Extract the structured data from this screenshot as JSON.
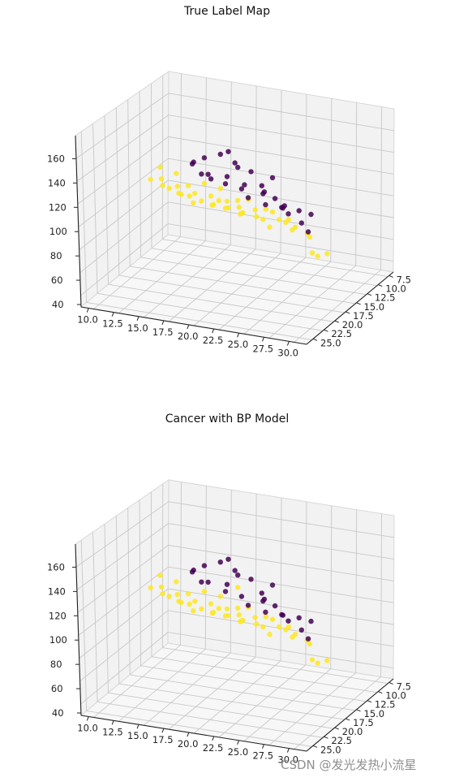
{
  "chart_data": [
    {
      "type": "scatter",
      "title": "True Label Map",
      "xticks": [
        "10.0",
        "12.5",
        "15.0",
        "17.5",
        "20.0",
        "22.5",
        "25.0",
        "27.5",
        "30.0"
      ],
      "yticks": [
        "7.5",
        "10.0",
        "12.5",
        "15.0",
        "17.5",
        "20.0",
        "22.5",
        "25.0"
      ],
      "zticks": [
        "40",
        "60",
        "80",
        "100",
        "120",
        "140",
        "160"
      ],
      "xlim": [
        10,
        31
      ],
      "ylim": [
        7,
        26
      ],
      "zlim": [
        40,
        180
      ],
      "colors": {
        "malignant": "#440154",
        "benign": "#fde725",
        "overlap": "#c8a53c"
      },
      "series": [
        {
          "label_class": "benign",
          "points": [
            [
              11.5,
              13,
              110
            ],
            [
              12,
              12,
              118
            ],
            [
              12.5,
              13,
              112
            ],
            [
              13,
              14,
              110
            ],
            [
              13.5,
              12,
              115
            ],
            [
              14,
              13,
              108
            ],
            [
              14,
              15,
              112
            ],
            [
              14.5,
              14,
              106
            ],
            [
              15,
              13,
              110
            ],
            [
              15.5,
              14,
              105
            ],
            [
              15.5,
              16,
              112
            ],
            [
              16,
              14,
              108
            ],
            [
              16.5,
              13,
              114
            ],
            [
              17,
              15,
              106
            ],
            [
              17,
              17,
              110
            ],
            [
              17.5,
              14,
              108
            ],
            [
              18,
              15,
              104
            ],
            [
              18,
              13,
              112
            ],
            [
              18.5,
              16,
              108
            ],
            [
              19,
              14,
              106
            ],
            [
              19,
              16,
              112
            ],
            [
              19.5,
              15,
              104
            ],
            [
              20,
              14,
              108
            ],
            [
              20,
              17,
              110
            ],
            [
              20.5,
              15,
              106
            ],
            [
              21,
              16,
              104
            ],
            [
              21,
              14,
              110
            ],
            [
              21.5,
              17,
              108
            ],
            [
              22,
              15,
              106
            ],
            [
              22,
              18,
              112
            ],
            [
              22.5,
              16,
              104
            ],
            [
              23,
              15,
              108
            ],
            [
              23.5,
              17,
              106
            ],
            [
              24,
              16,
              110
            ],
            [
              24.5,
              18,
              104
            ],
            [
              25,
              17,
              108
            ],
            [
              25.5,
              16,
              106
            ],
            [
              26,
              18,
              110
            ],
            [
              26.5,
              17,
              104
            ],
            [
              27,
              19,
              108
            ],
            [
              28,
              18,
              104
            ],
            [
              29,
              20,
              108
            ],
            [
              30,
              22,
              102
            ],
            [
              30.5,
              22,
              100
            ],
            [
              31,
              21,
              100
            ]
          ]
        },
        {
          "label_class": "malignant",
          "points": [
            [
              15,
              12,
              125
            ],
            [
              15.5,
              13,
              130
            ],
            [
              16.5,
              13,
              135
            ],
            [
              17,
              15,
              128
            ],
            [
              17.5,
              14,
              122
            ],
            [
              18,
              13,
              140
            ],
            [
              18,
              16,
              132
            ],
            [
              19,
              14,
              126
            ],
            [
              19.5,
              15,
              150
            ],
            [
              20,
              14,
              135
            ],
            [
              20,
              17,
              130
            ],
            [
              20.5,
              16,
              145
            ],
            [
              21,
              15,
              125
            ],
            [
              21.5,
              17,
              128
            ],
            [
              22,
              16,
              140
            ],
            [
              22.5,
              18,
              125
            ],
            [
              23,
              16,
              130
            ],
            [
              23.5,
              17,
              127
            ],
            [
              24,
              18,
              132
            ],
            [
              24.5,
              19,
              125
            ],
            [
              25,
              18,
              128
            ],
            [
              25.5,
              17,
              120
            ],
            [
              26,
              19,
              125
            ],
            [
              26.5,
              20,
              128
            ],
            [
              27,
              20,
              124
            ],
            [
              28,
              20,
              128
            ],
            [
              29,
              22,
              125
            ],
            [
              29.5,
              21,
              130
            ],
            [
              30,
              23,
              122
            ],
            [
              24,
              16,
              138
            ]
          ]
        }
      ]
    },
    {
      "type": "scatter",
      "title": "Cancer with BP Model",
      "xticks": [
        "10.0",
        "12.5",
        "15.0",
        "17.5",
        "20.0",
        "22.5",
        "25.0",
        "27.5",
        "30.0"
      ],
      "yticks": [
        "7.5",
        "10.0",
        "12.5",
        "15.0",
        "17.5",
        "20.0",
        "22.5",
        "25.0"
      ],
      "zticks": [
        "40",
        "60",
        "80",
        "100",
        "120",
        "140",
        "160"
      ],
      "xlim": [
        10,
        31
      ],
      "ylim": [
        7,
        26
      ],
      "zlim": [
        40,
        180
      ],
      "colors": {
        "malignant": "#440154",
        "benign": "#fde725",
        "overlap": "#c8a53c"
      },
      "series": [
        {
          "label_class": "benign",
          "points": [
            [
              11.5,
              13,
              110
            ],
            [
              12,
              12,
              118
            ],
            [
              12.5,
              13,
              112
            ],
            [
              13,
              14,
              110
            ],
            [
              13.5,
              12,
              115
            ],
            [
              14,
              13,
              108
            ],
            [
              14,
              15,
              112
            ],
            [
              14.5,
              14,
              106
            ],
            [
              15,
              13,
              110
            ],
            [
              15.5,
              14,
              105
            ],
            [
              15.5,
              16,
              112
            ],
            [
              16,
              14,
              108
            ],
            [
              16.5,
              13,
              114
            ],
            [
              17,
              15,
              106
            ],
            [
              17,
              17,
              110
            ],
            [
              17.5,
              14,
              108
            ],
            [
              18,
              15,
              104
            ],
            [
              18,
              13,
              112
            ],
            [
              18.5,
              16,
              108
            ],
            [
              19,
              14,
              106
            ],
            [
              19,
              16,
              112
            ],
            [
              19.5,
              15,
              104
            ],
            [
              20,
              14,
              108
            ],
            [
              20,
              17,
              110
            ],
            [
              20.5,
              15,
              106
            ],
            [
              21,
              16,
              104
            ],
            [
              21,
              14,
              110
            ],
            [
              21.5,
              17,
              108
            ],
            [
              22,
              15,
              106
            ],
            [
              22,
              18,
              112
            ],
            [
              22.5,
              16,
              104
            ],
            [
              23,
              15,
              108
            ],
            [
              23.5,
              17,
              106
            ],
            [
              24,
              16,
              110
            ],
            [
              24.5,
              18,
              104
            ],
            [
              25,
              17,
              108
            ],
            [
              25.5,
              16,
              106
            ],
            [
              26,
              18,
              110
            ],
            [
              26.5,
              17,
              104
            ],
            [
              27,
              19,
              108
            ],
            [
              28,
              18,
              104
            ],
            [
              29,
              20,
              108
            ],
            [
              30,
              22,
              102
            ],
            [
              30.5,
              22,
              100
            ],
            [
              31,
              21,
              100
            ],
            [
              20,
              14,
              125
            ]
          ]
        },
        {
          "label_class": "malignant",
          "points": [
            [
              15,
              12,
              125
            ],
            [
              15.5,
              13,
              130
            ],
            [
              16.5,
              13,
              135
            ],
            [
              17,
              15,
              128
            ],
            [
              18,
              13,
              140
            ],
            [
              18,
              16,
              132
            ],
            [
              19,
              14,
              126
            ],
            [
              19.5,
              15,
              150
            ],
            [
              20,
              14,
              135
            ],
            [
              20,
              17,
              130
            ],
            [
              20.5,
              16,
              145
            ],
            [
              21.5,
              17,
              128
            ],
            [
              22,
              16,
              140
            ],
            [
              22.5,
              18,
              125
            ],
            [
              23,
              16,
              130
            ],
            [
              23.5,
              17,
              127
            ],
            [
              24,
              18,
              132
            ],
            [
              24.5,
              19,
              125
            ],
            [
              25,
              18,
              128
            ],
            [
              26,
              19,
              125
            ],
            [
              26.5,
              20,
              128
            ],
            [
              27,
              20,
              124
            ],
            [
              28,
              20,
              128
            ],
            [
              29,
              22,
              125
            ],
            [
              29.5,
              21,
              130
            ],
            [
              30,
              23,
              122
            ],
            [
              24,
              16,
              138
            ]
          ]
        }
      ]
    }
  ],
  "watermark": "CSDN @发光发热小流星"
}
